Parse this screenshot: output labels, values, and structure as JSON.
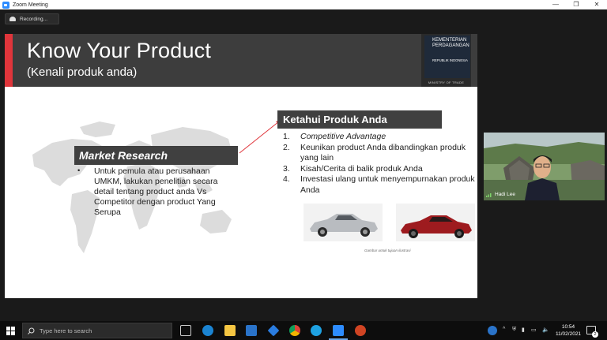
{
  "window": {
    "title": "Zoom Meeting",
    "controls": [
      "—",
      "❐",
      "✕"
    ]
  },
  "recording": {
    "label": "Recording..."
  },
  "slide": {
    "title": "Know Your Product",
    "subtitle": "(Kenali produk anda)",
    "ministry": {
      "line1": "KEMENTERIAN",
      "line2": "PERDAGANGAN",
      "line3": "REPUBLIK INDONESIA",
      "footer": "MINISTRY OF TRADE"
    },
    "market_research": {
      "heading": "Market Research",
      "bullet": "•",
      "text": "Untuk pemula atau perusahaan UMKM, lakukan penelitian secara detail tentang product anda Vs Competitor dengan product Yang Serupa"
    },
    "know_product": {
      "heading": "Ketahui Produk Anda",
      "items": [
        {
          "num": "1.",
          "text": "Competitive Advantage"
        },
        {
          "num": "2.",
          "text": "Keunikan product Anda dibandingkan produk yang lain"
        },
        {
          "num": "3.",
          "text": "Kisah/Cerita di balik produk Anda"
        },
        {
          "num": "4.",
          "text": "Investasi ulang untuk menyempurnakan produk Anda"
        }
      ]
    },
    "caption": "Gambar untuk tujuan ilustrasi",
    "colors": {
      "accent": "#e0353b",
      "header": "#3d3d3d",
      "banner": "#404040"
    }
  },
  "participant": {
    "name": "Hadi Lee"
  },
  "taskbar": {
    "search_placeholder": "Type here to search",
    "time": "10:54",
    "date": "11/02/2021",
    "notification_count": "2",
    "apps": [
      "task-view-icon",
      "edge-icon",
      "file-explorer-icon",
      "mail-icon",
      "dropbox-icon",
      "chrome-icon",
      "ie-icon",
      "zoom-icon",
      "powerpoint-icon"
    ]
  }
}
